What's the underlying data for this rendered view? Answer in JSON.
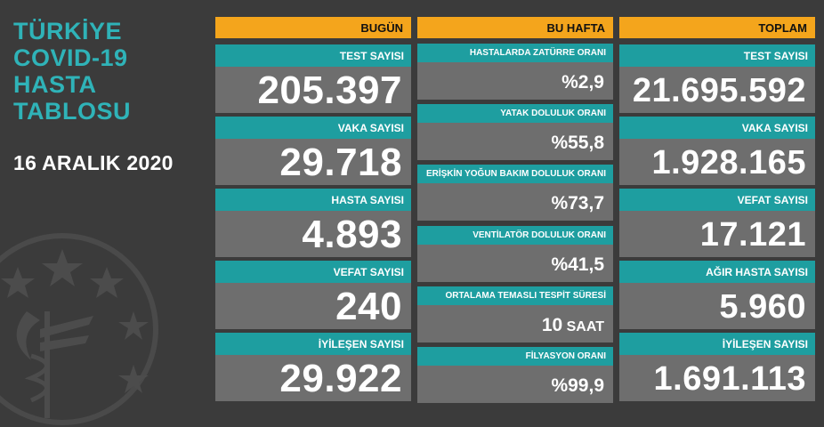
{
  "left": {
    "title_lines": [
      "TÜRKİYE",
      "COVID-19",
      "HASTA",
      "TABLOSU"
    ],
    "date": "16 ARALIK 2020"
  },
  "today": {
    "header": "BUGÜN",
    "items": [
      {
        "label": "TEST SAYISI",
        "value": "205.397"
      },
      {
        "label": "VAKA SAYISI",
        "value": "29.718"
      },
      {
        "label": "HASTA SAYISI",
        "value": "4.893"
      },
      {
        "label": "VEFAT SAYISI",
        "value": "240"
      },
      {
        "label": "İYİLEŞEN SAYISI",
        "value": "29.922"
      }
    ]
  },
  "week": {
    "header": "BU HAFTA",
    "items": [
      {
        "label": "HASTALARDA ZATÜRRE ORANI",
        "value": "%2,9"
      },
      {
        "label": "YATAK DOLULUK ORANI",
        "value": "%55,8"
      },
      {
        "label": "ERİŞKİN YOĞUN BAKIM DOLULUK ORANI",
        "value": "%73,7"
      },
      {
        "label": "VENTİLATÖR DOLULUK ORANI",
        "value": "%41,5"
      },
      {
        "label": "ORTALAMA TEMASLI TESPİT SÜRESİ",
        "value": "10",
        "unit": " SAAT"
      },
      {
        "label": "FİLYASYON ORANI",
        "value": "%99,9"
      }
    ]
  },
  "total": {
    "header": "TOPLAM",
    "items": [
      {
        "label": "TEST SAYISI",
        "value": "21.695.592"
      },
      {
        "label": "VAKA SAYISI",
        "value": "1.928.165"
      },
      {
        "label": "VEFAT SAYISI",
        "value": "17.121"
      },
      {
        "label": "AĞIR HASTA SAYISI",
        "value": "5.960"
      },
      {
        "label": "İYİLEŞEN SAYISI",
        "value": "1.691.113"
      }
    ]
  },
  "colors": {
    "background": "#3b3b3b",
    "header": "#f4a51c",
    "label": "#1e9ea0",
    "value_bg": "#6e6e6e",
    "title": "#2fb3b8"
  },
  "icons": {
    "emblem": "ministry-of-health-emblem-icon"
  }
}
